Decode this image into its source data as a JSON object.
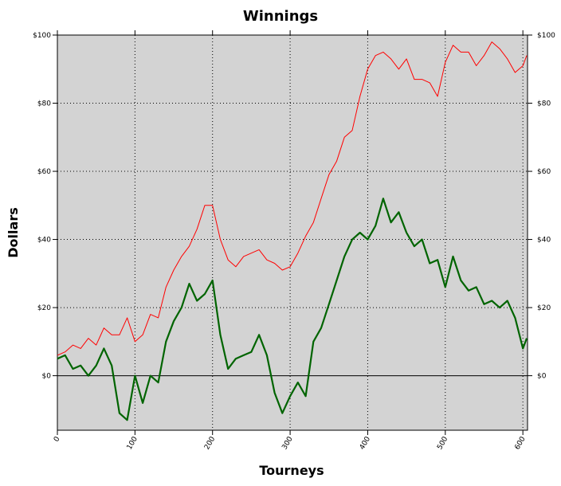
{
  "chart_data": {
    "type": "line",
    "title": "Winnings",
    "x_label": "Tourneys",
    "y_label": "Dollars",
    "x": [
      0,
      10,
      20,
      30,
      40,
      50,
      60,
      70,
      80,
      90,
      100,
      110,
      120,
      130,
      140,
      150,
      160,
      170,
      180,
      190,
      200,
      210,
      220,
      230,
      240,
      250,
      260,
      270,
      280,
      290,
      300,
      310,
      320,
      330,
      340,
      350,
      360,
      370,
      380,
      390,
      400,
      410,
      420,
      430,
      440,
      450,
      460,
      470,
      480,
      490,
      500,
      510,
      520,
      530,
      540,
      550,
      560,
      570,
      580,
      590,
      600,
      605
    ],
    "series": [
      {
        "color": "#ff0000",
        "width": 1,
        "values": [
          6,
          7,
          9,
          8,
          11,
          9,
          14,
          12,
          12,
          17,
          10,
          12,
          18,
          17,
          26,
          31,
          35,
          38,
          43,
          50,
          50,
          40,
          34,
          32,
          35,
          36,
          37,
          34,
          33,
          31,
          32,
          36,
          41,
          45,
          52,
          59,
          63,
          70,
          72,
          82,
          90,
          94,
          95,
          93,
          90,
          93,
          87,
          87,
          86,
          82,
          92,
          97,
          95,
          95,
          91,
          94,
          98,
          96,
          93,
          89,
          91,
          94
        ]
      },
      {
        "color": "#006400",
        "width": 2.2,
        "values": [
          5,
          6,
          2,
          3,
          0,
          3,
          8,
          3,
          -11,
          -13,
          0,
          -8,
          0,
          -2,
          10,
          16,
          20,
          27,
          22,
          24,
          28,
          12,
          2,
          5,
          6,
          7,
          12,
          6,
          -5,
          -11,
          -6,
          -2,
          -6,
          10,
          14,
          21,
          28,
          35,
          40,
          42,
          40,
          44,
          52,
          45,
          48,
          42,
          38,
          40,
          33,
          34,
          26,
          35,
          28,
          25,
          26,
          21,
          22,
          20,
          22,
          17,
          8,
          11
        ]
      }
    ],
    "xlim": [
      0,
      606
    ],
    "ylim": [
      -16,
      100
    ],
    "xticks": [
      0,
      100,
      200,
      300,
      400,
      500,
      600
    ],
    "yticks": [
      {
        "value": 0,
        "label": "$0"
      },
      {
        "value": 20,
        "label": "$20"
      },
      {
        "value": 40,
        "label": "$40"
      },
      {
        "value": 60,
        "label": "$60"
      },
      {
        "value": 80,
        "label": "$80"
      },
      {
        "value": 100,
        "label": "$100"
      }
    ],
    "grid": true,
    "background": "#d3d3d3"
  }
}
